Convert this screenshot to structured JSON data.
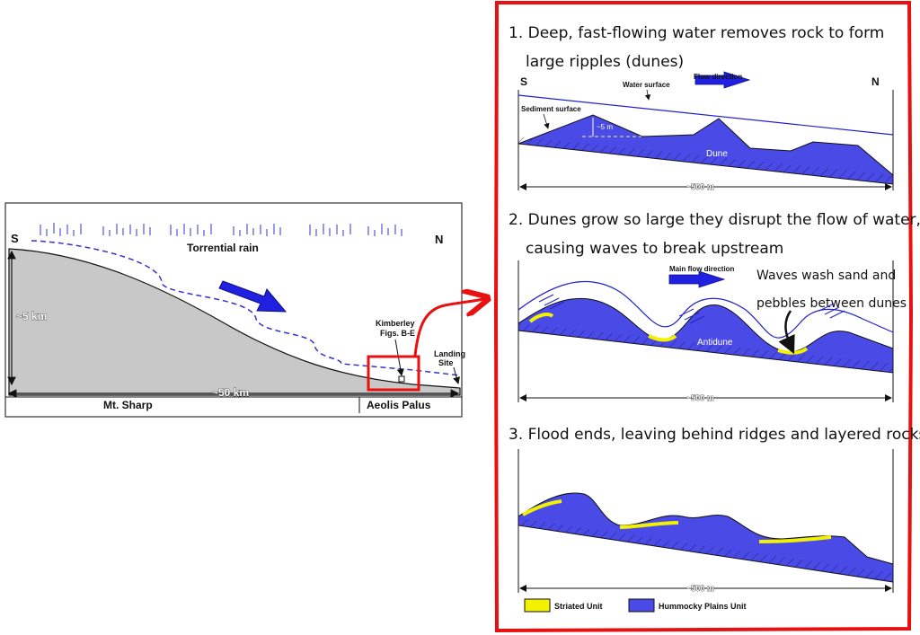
{
  "overview": {
    "label_s": "S",
    "label_n": "N",
    "rain_label": "Torrential rain",
    "height_label": "~5 km",
    "distance_label": "~50 km",
    "kimberley_label_1": "Kimberley",
    "kimberley_label_2": "Figs. B-E",
    "landing_label_1": "Landing",
    "landing_label_2": "Site",
    "region_left": "Mt. Sharp",
    "region_right": "Aeolis Palus"
  },
  "panel1": {
    "caption_line1": "1. Deep, fast-flowing water removes rock to form",
    "caption_line2": "large ripples (dunes)",
    "label_s": "S",
    "label_n": "N",
    "flow_label": "Flow direction",
    "water_label": "Water surface",
    "sediment_label": "Sediment surface",
    "depth_label": "~5 m",
    "dune_label": "Dune",
    "scale_label": "~500 m"
  },
  "panel2": {
    "caption_line1": "2. Dunes grow so large they disrupt the flow of water,",
    "caption_line2": "causing waves to break upstream",
    "flow_label": "Main flow direction",
    "note_line1": "Waves wash sand and",
    "note_line2": "pebbles between dunes",
    "antidune_label": "Antidune",
    "scale_label": "~500 m"
  },
  "panel3": {
    "caption": "3. Flood ends, leaving behind ridges and layered rocks!",
    "scale_label": "~500 m"
  },
  "legend": {
    "striated": "Striated Unit",
    "hummocky": "Hummocky Plains Unit"
  },
  "colors": {
    "rock": "#4a4ae6",
    "sand": "#f2f200",
    "frame": "#e81010",
    "ground": "#c8c8c8"
  }
}
